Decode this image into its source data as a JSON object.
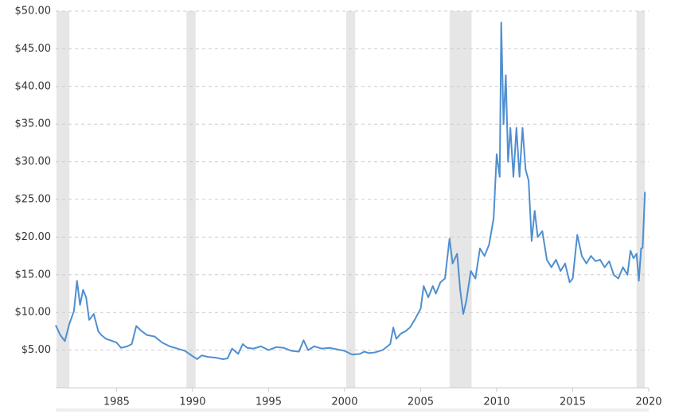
{
  "chart_data": {
    "type": "line",
    "x": [
      1981.0,
      1981.3,
      1981.6,
      1981.9,
      1982.2,
      1982.4,
      1982.6,
      1982.8,
      1983.0,
      1983.2,
      1983.5,
      1983.8,
      1984.0,
      1984.3,
      1984.6,
      1985.0,
      1985.3,
      1985.7,
      1986.0,
      1986.3,
      1986.6,
      1987.0,
      1987.5,
      1988.0,
      1988.5,
      1989.0,
      1989.5,
      1990.0,
      1990.3,
      1990.6,
      1991.0,
      1991.5,
      1992.0,
      1992.3,
      1992.6,
      1993.0,
      1993.3,
      1993.6,
      1994.0,
      1994.5,
      1995.0,
      1995.5,
      1996.0,
      1996.5,
      1997.0,
      1997.3,
      1997.6,
      1998.0,
      1998.5,
      1999.0,
      1999.5,
      2000.0,
      2000.5,
      2001.0,
      2001.3,
      2001.6,
      2002.0,
      2002.5,
      2003.0,
      2003.2,
      2003.4,
      2003.7,
      2004.0,
      2004.3,
      2004.6,
      2005.0,
      2005.2,
      2005.5,
      2005.8,
      2006.0,
      2006.3,
      2006.6,
      2006.9,
      2007.1,
      2007.4,
      2007.6,
      2007.8,
      2008.0,
      2008.3,
      2008.6,
      2008.9,
      2009.2,
      2009.5,
      2009.8,
      2010.0,
      2010.2,
      2010.3,
      2010.45,
      2010.6,
      2010.75,
      2010.9,
      2011.1,
      2011.3,
      2011.5,
      2011.7,
      2011.9,
      2012.1,
      2012.3,
      2012.5,
      2012.7,
      2013.0,
      2013.3,
      2013.6,
      2013.9,
      2014.2,
      2014.5,
      2014.8,
      2015.0,
      2015.3,
      2015.6,
      2015.9,
      2016.2,
      2016.5,
      2016.8,
      2017.1,
      2017.4,
      2017.7,
      2018.0,
      2018.3,
      2018.6,
      2018.8,
      2019.0,
      2019.2,
      2019.35,
      2019.5,
      2019.6,
      2019.75
    ],
    "series": [
      {
        "color": "#4f8fd0",
        "values": [
          8.3,
          7.0,
          6.2,
          8.5,
          10.2,
          14.2,
          11.0,
          13.0,
          12.0,
          9.0,
          9.8,
          7.5,
          7.0,
          6.5,
          6.3,
          6.0,
          5.3,
          5.5,
          5.8,
          8.2,
          7.6,
          7.0,
          6.8,
          6.0,
          5.5,
          5.2,
          4.9,
          4.2,
          3.8,
          4.3,
          4.1,
          4.0,
          3.8,
          3.9,
          5.2,
          4.5,
          5.8,
          5.3,
          5.2,
          5.5,
          5.0,
          5.4,
          5.3,
          4.9,
          4.8,
          6.3,
          5.0,
          5.5,
          5.2,
          5.3,
          5.1,
          4.9,
          4.4,
          4.5,
          4.8,
          4.6,
          4.7,
          5.0,
          5.8,
          8.0,
          6.5,
          7.2,
          7.5,
          8.0,
          9.0,
          10.5,
          13.5,
          12.0,
          13.5,
          12.5,
          14.0,
          14.5,
          19.8,
          16.5,
          17.8,
          13.0,
          9.8,
          11.5,
          15.5,
          14.5,
          18.5,
          17.5,
          19.0,
          22.5,
          31.0,
          28.0,
          48.5,
          35.0,
          41.5,
          30.0,
          34.5,
          28.0,
          34.5,
          28.0,
          34.5,
          29.0,
          27.5,
          19.5,
          23.5,
          20.0,
          20.8,
          17.0,
          16.0,
          17.0,
          15.5,
          16.5,
          14.0,
          14.5,
          20.3,
          17.5,
          16.5,
          17.5,
          16.8,
          17.0,
          16.0,
          16.8,
          15.0,
          14.5,
          16.0,
          15.0,
          18.2,
          17.2,
          17.8,
          14.2,
          18.5,
          18.6,
          26.0
        ]
      }
    ],
    "recessions": [
      [
        1981.05,
        1981.9
      ],
      [
        1989.6,
        1990.2
      ],
      [
        2000.1,
        2000.7
      ],
      [
        2006.9,
        2008.35
      ],
      [
        2019.2,
        2019.75
      ]
    ],
    "recession_color": "#e6e6e6",
    "xlim": [
      1981,
      2020
    ],
    "xticks": [
      1985,
      1990,
      1995,
      2000,
      2005,
      2010,
      2015,
      2020
    ],
    "ylim": [
      0,
      50
    ],
    "yticks": [
      {
        "value": 5,
        "label": "$5.00"
      },
      {
        "value": 10,
        "label": "$10.00"
      },
      {
        "value": 15,
        "label": "$15.00"
      },
      {
        "value": 20,
        "label": "$20.00"
      },
      {
        "value": 25,
        "label": "$25.00"
      },
      {
        "value": 30,
        "label": "$30.00"
      },
      {
        "value": 35,
        "label": "$35.00"
      },
      {
        "value": 40,
        "label": "$40.00"
      },
      {
        "value": 45,
        "label": "$45.00"
      },
      {
        "value": 50,
        "label": "$50.00"
      }
    ],
    "grid": true
  }
}
